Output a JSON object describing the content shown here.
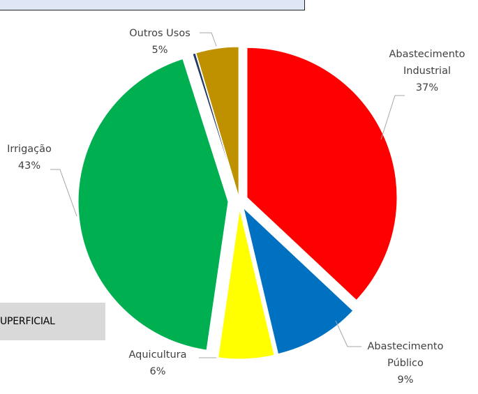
{
  "side_box": {
    "text": "UPERFICIAL"
  },
  "chart_data": {
    "type": "pie",
    "exploded": true,
    "start_angle_deg": 0,
    "direction": "clockwise",
    "slices": [
      {
        "label_lines": [
          "Abastecimento",
          "Industrial"
        ],
        "pct_text": "37%",
        "value": 37.0,
        "color": "#ff0000"
      },
      {
        "label_lines": [
          "Abastecimento",
          "Público"
        ],
        "pct_text": "9%",
        "value": 9.3,
        "color": "#0070c0"
      },
      {
        "label_lines": [
          "Aquicultura"
        ],
        "pct_text": "6%",
        "value": 6.0,
        "color": "#ffff00"
      },
      {
        "label_lines": [
          "Irrigação"
        ],
        "pct_text": "43%",
        "value": 42.8,
        "color": "#00b050"
      },
      {
        "label_lines": [],
        "pct_text": "",
        "value": 0.3,
        "color": "#1f3864"
      },
      {
        "label_lines": [
          "Outros Usos"
        ],
        "pct_text": "5%",
        "value": 4.6,
        "color": "#bf9000"
      }
    ]
  }
}
